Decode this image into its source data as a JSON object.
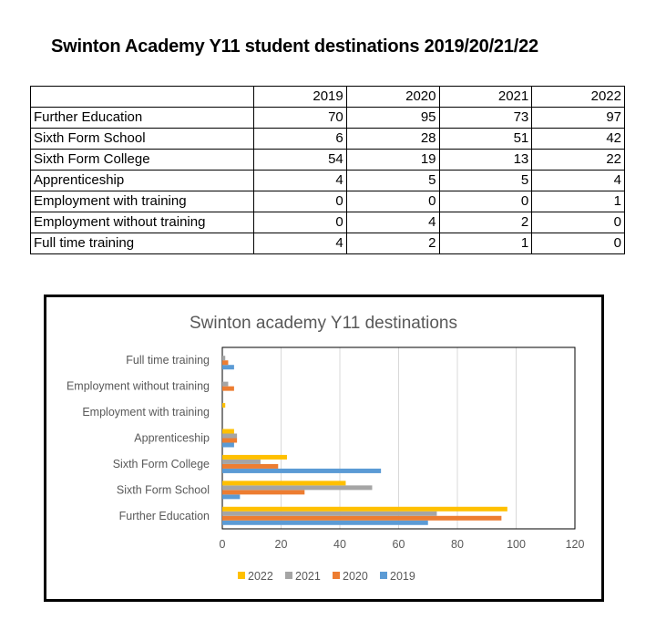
{
  "heading": "Swinton Academy Y11 student destinations 2019/20/21/22",
  "table": {
    "years": [
      "2019",
      "2020",
      "2021",
      "2022"
    ],
    "rows": [
      {
        "label": "Further Education",
        "values": [
          "70",
          "95",
          "73",
          "97"
        ]
      },
      {
        "label": "Sixth Form School",
        "values": [
          "6",
          "28",
          "51",
          "42"
        ]
      },
      {
        "label": "Sixth Form College",
        "values": [
          "54",
          "19",
          "13",
          "22"
        ]
      },
      {
        "label": "Apprenticeship",
        "values": [
          "4",
          "5",
          "5",
          "4"
        ]
      },
      {
        "label": "Employment with training",
        "values": [
          "0",
          "0",
          "0",
          "1"
        ]
      },
      {
        "label": "Employment without training",
        "values": [
          "0",
          "4",
          "2",
          "0"
        ]
      },
      {
        "label": "Full time training",
        "values": [
          "4",
          "2",
          "1",
          "0"
        ]
      }
    ]
  },
  "chart_data": {
    "type": "bar",
    "orientation": "horizontal",
    "title": "Swinton academy Y11 destinations",
    "xlabel": "",
    "ylabel": "",
    "categories": [
      "Further Education",
      "Sixth Form School",
      "Sixth Form College",
      "Apprenticeship",
      "Employment with training",
      "Employment without training",
      "Full time training"
    ],
    "series": [
      {
        "name": "2019",
        "color": "#5B9BD5",
        "values": [
          70,
          6,
          54,
          4,
          0,
          0,
          4
        ]
      },
      {
        "name": "2020",
        "color": "#ED7D31",
        "values": [
          95,
          28,
          19,
          5,
          0,
          4,
          2
        ]
      },
      {
        "name": "2021",
        "color": "#A5A5A5",
        "values": [
          73,
          51,
          13,
          5,
          0,
          2,
          1
        ]
      },
      {
        "name": "2022",
        "color": "#FFC000",
        "values": [
          97,
          42,
          22,
          4,
          1,
          0,
          0
        ]
      }
    ],
    "legend_order": [
      "2022",
      "2021",
      "2020",
      "2019"
    ],
    "xlim": [
      0,
      120
    ],
    "xticks": [
      0,
      20,
      40,
      60,
      80,
      100,
      120
    ],
    "grid": true,
    "legend_position": "bottom"
  }
}
